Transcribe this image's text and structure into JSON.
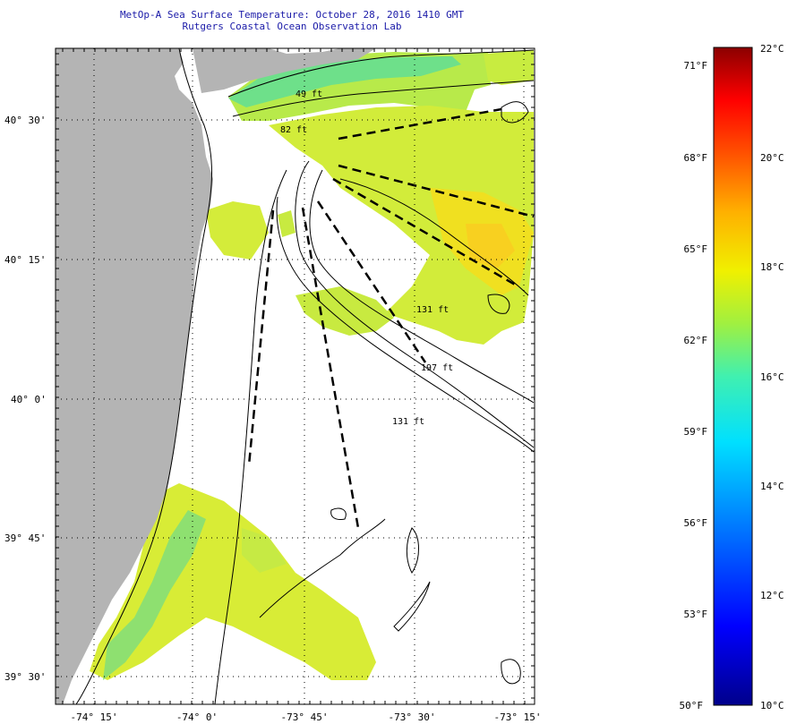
{
  "header": {
    "title": "MetOp-A Sea Surface Temperature:  October 28, 2016 1410 GMT",
    "subtitle": "Rutgers Coastal Ocean Observation Lab"
  },
  "map": {
    "lat_labels": [
      {
        "text": "40° 30'",
        "lat": 40.5
      },
      {
        "text": "40° 15'",
        "lat": 40.25
      },
      {
        "text": "40° 0'",
        "lat": 40.0
      },
      {
        "text": "39° 45'",
        "lat": 39.75
      },
      {
        "text": "39° 30'",
        "lat": 39.5
      }
    ],
    "lon_labels": [
      {
        "text": "-74° 15'",
        "lon": -74.25
      },
      {
        "text": "-74° 0'",
        "lon": -74.0
      },
      {
        "text": "-73° 45'",
        "lon": -73.75
      },
      {
        "text": "-73° 30'",
        "lon": -73.5
      },
      {
        "text": "-73° 15'",
        "lon": -73.25
      }
    ],
    "depth_labels": [
      "49 ft",
      "82 ft",
      "131 ft",
      "197 ft",
      "131 ft"
    ],
    "land_color": "#b4b4b4",
    "ocean_color": "#ffffff"
  },
  "colorbar": {
    "fahrenheit_labels": [
      "71°F",
      "68°F",
      "65°F",
      "62°F",
      "59°F",
      "56°F",
      "53°F",
      "50°F"
    ],
    "celsius_labels": [
      "22°C",
      "20°C",
      "18°C",
      "16°C",
      "14°C",
      "12°C",
      "10°C"
    ],
    "min_c": 10,
    "max_c": 22,
    "colors": [
      "#00008b",
      "#0000ff",
      "#0080ff",
      "#00d8ff",
      "#40f0c0",
      "#a0f040",
      "#f0f000",
      "#ffb000",
      "#ff6000",
      "#ff0000",
      "#8b0000"
    ]
  }
}
